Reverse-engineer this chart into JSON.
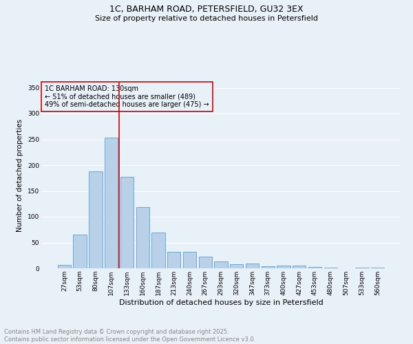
{
  "title": "1C, BARHAM ROAD, PETERSFIELD, GU32 3EX",
  "subtitle": "Size of property relative to detached houses in Petersfield",
  "xlabel": "Distribution of detached houses by size in Petersfield",
  "ylabel": "Number of detached properties",
  "categories": [
    "27sqm",
    "53sqm",
    "80sqm",
    "107sqm",
    "133sqm",
    "160sqm",
    "187sqm",
    "213sqm",
    "240sqm",
    "267sqm",
    "293sqm",
    "320sqm",
    "347sqm",
    "373sqm",
    "400sqm",
    "427sqm",
    "453sqm",
    "480sqm",
    "507sqm",
    "533sqm",
    "560sqm"
  ],
  "values": [
    7,
    66,
    188,
    253,
    178,
    119,
    69,
    32,
    32,
    23,
    13,
    8,
    9,
    4,
    5,
    5,
    3,
    1,
    0,
    1,
    2
  ],
  "bar_color": "#b8d0e8",
  "bar_edge_color": "#6aaad4",
  "background_color": "#e8f0f8",
  "grid_color": "#ffffff",
  "vline_x_index": 4,
  "vline_color": "#cc0000",
  "annotation_text": "1C BARHAM ROAD: 130sqm\n← 51% of detached houses are smaller (489)\n49% of semi-detached houses are larger (475) →",
  "annotation_box_color": "#cc0000",
  "ylim": [
    0,
    360
  ],
  "yticks": [
    0,
    50,
    100,
    150,
    200,
    250,
    300,
    350
  ],
  "footer": "Contains HM Land Registry data © Crown copyright and database right 2025.\nContains public sector information licensed under the Open Government Licence v3.0.",
  "footer_color": "#888888",
  "title_fontsize": 9,
  "subtitle_fontsize": 8,
  "xlabel_fontsize": 8,
  "ylabel_fontsize": 7.5,
  "tick_fontsize": 6.5,
  "annotation_fontsize": 7,
  "footer_fontsize": 6
}
